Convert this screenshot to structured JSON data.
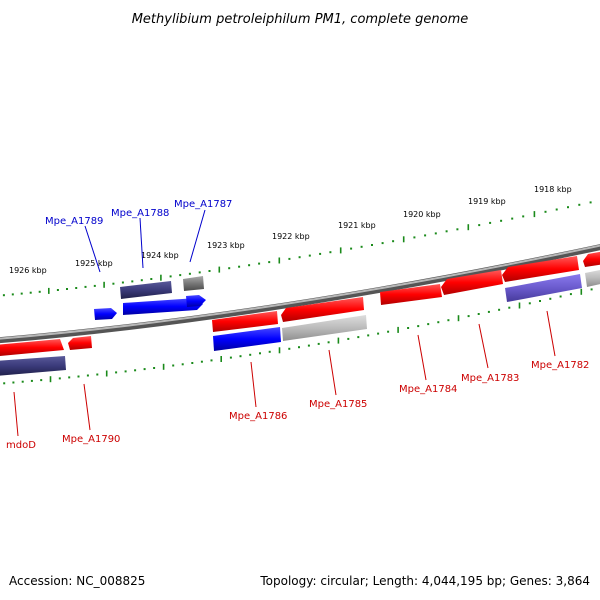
{
  "title": "Methylibium petroleiphilum PM1, complete genome",
  "footer": {
    "accession": "Accession: NC_008825",
    "topology": "Topology: circular; Length: 4,044,195 bp; Genes: 3,864"
  },
  "colors": {
    "forward": "#ff0000",
    "reverse": "#0000ff",
    "hypothetical": "#8a8a8a",
    "navy": "#3a3a7a",
    "violet": "#6a5acd",
    "light_grey": "#b8b8b8",
    "tick": "#1a8a1a",
    "blue_label": "#0000cc",
    "red_label": "#cc0000"
  },
  "ticks": [
    "1918 kbp",
    "1919 kbp",
    "1920 kbp",
    "1921 kbp",
    "1922 kbp",
    "1923 kbp",
    "1924 kbp",
    "1925 kbp",
    "1926 kbp"
  ],
  "gene_labels": {
    "mdoD": "mdoD",
    "Mpe_A1790": "Mpe_A1790",
    "Mpe_A1789": "Mpe_A1789",
    "Mpe_A1788": "Mpe_A1788",
    "Mpe_A1787": "Mpe_A1787",
    "Mpe_A1786": "Mpe_A1786",
    "Mpe_A1785": "Mpe_A1785",
    "Mpe_A1784": "Mpe_A1784",
    "Mpe_A1783": "Mpe_A1783",
    "Mpe_A1782": "Mpe_A1782"
  }
}
